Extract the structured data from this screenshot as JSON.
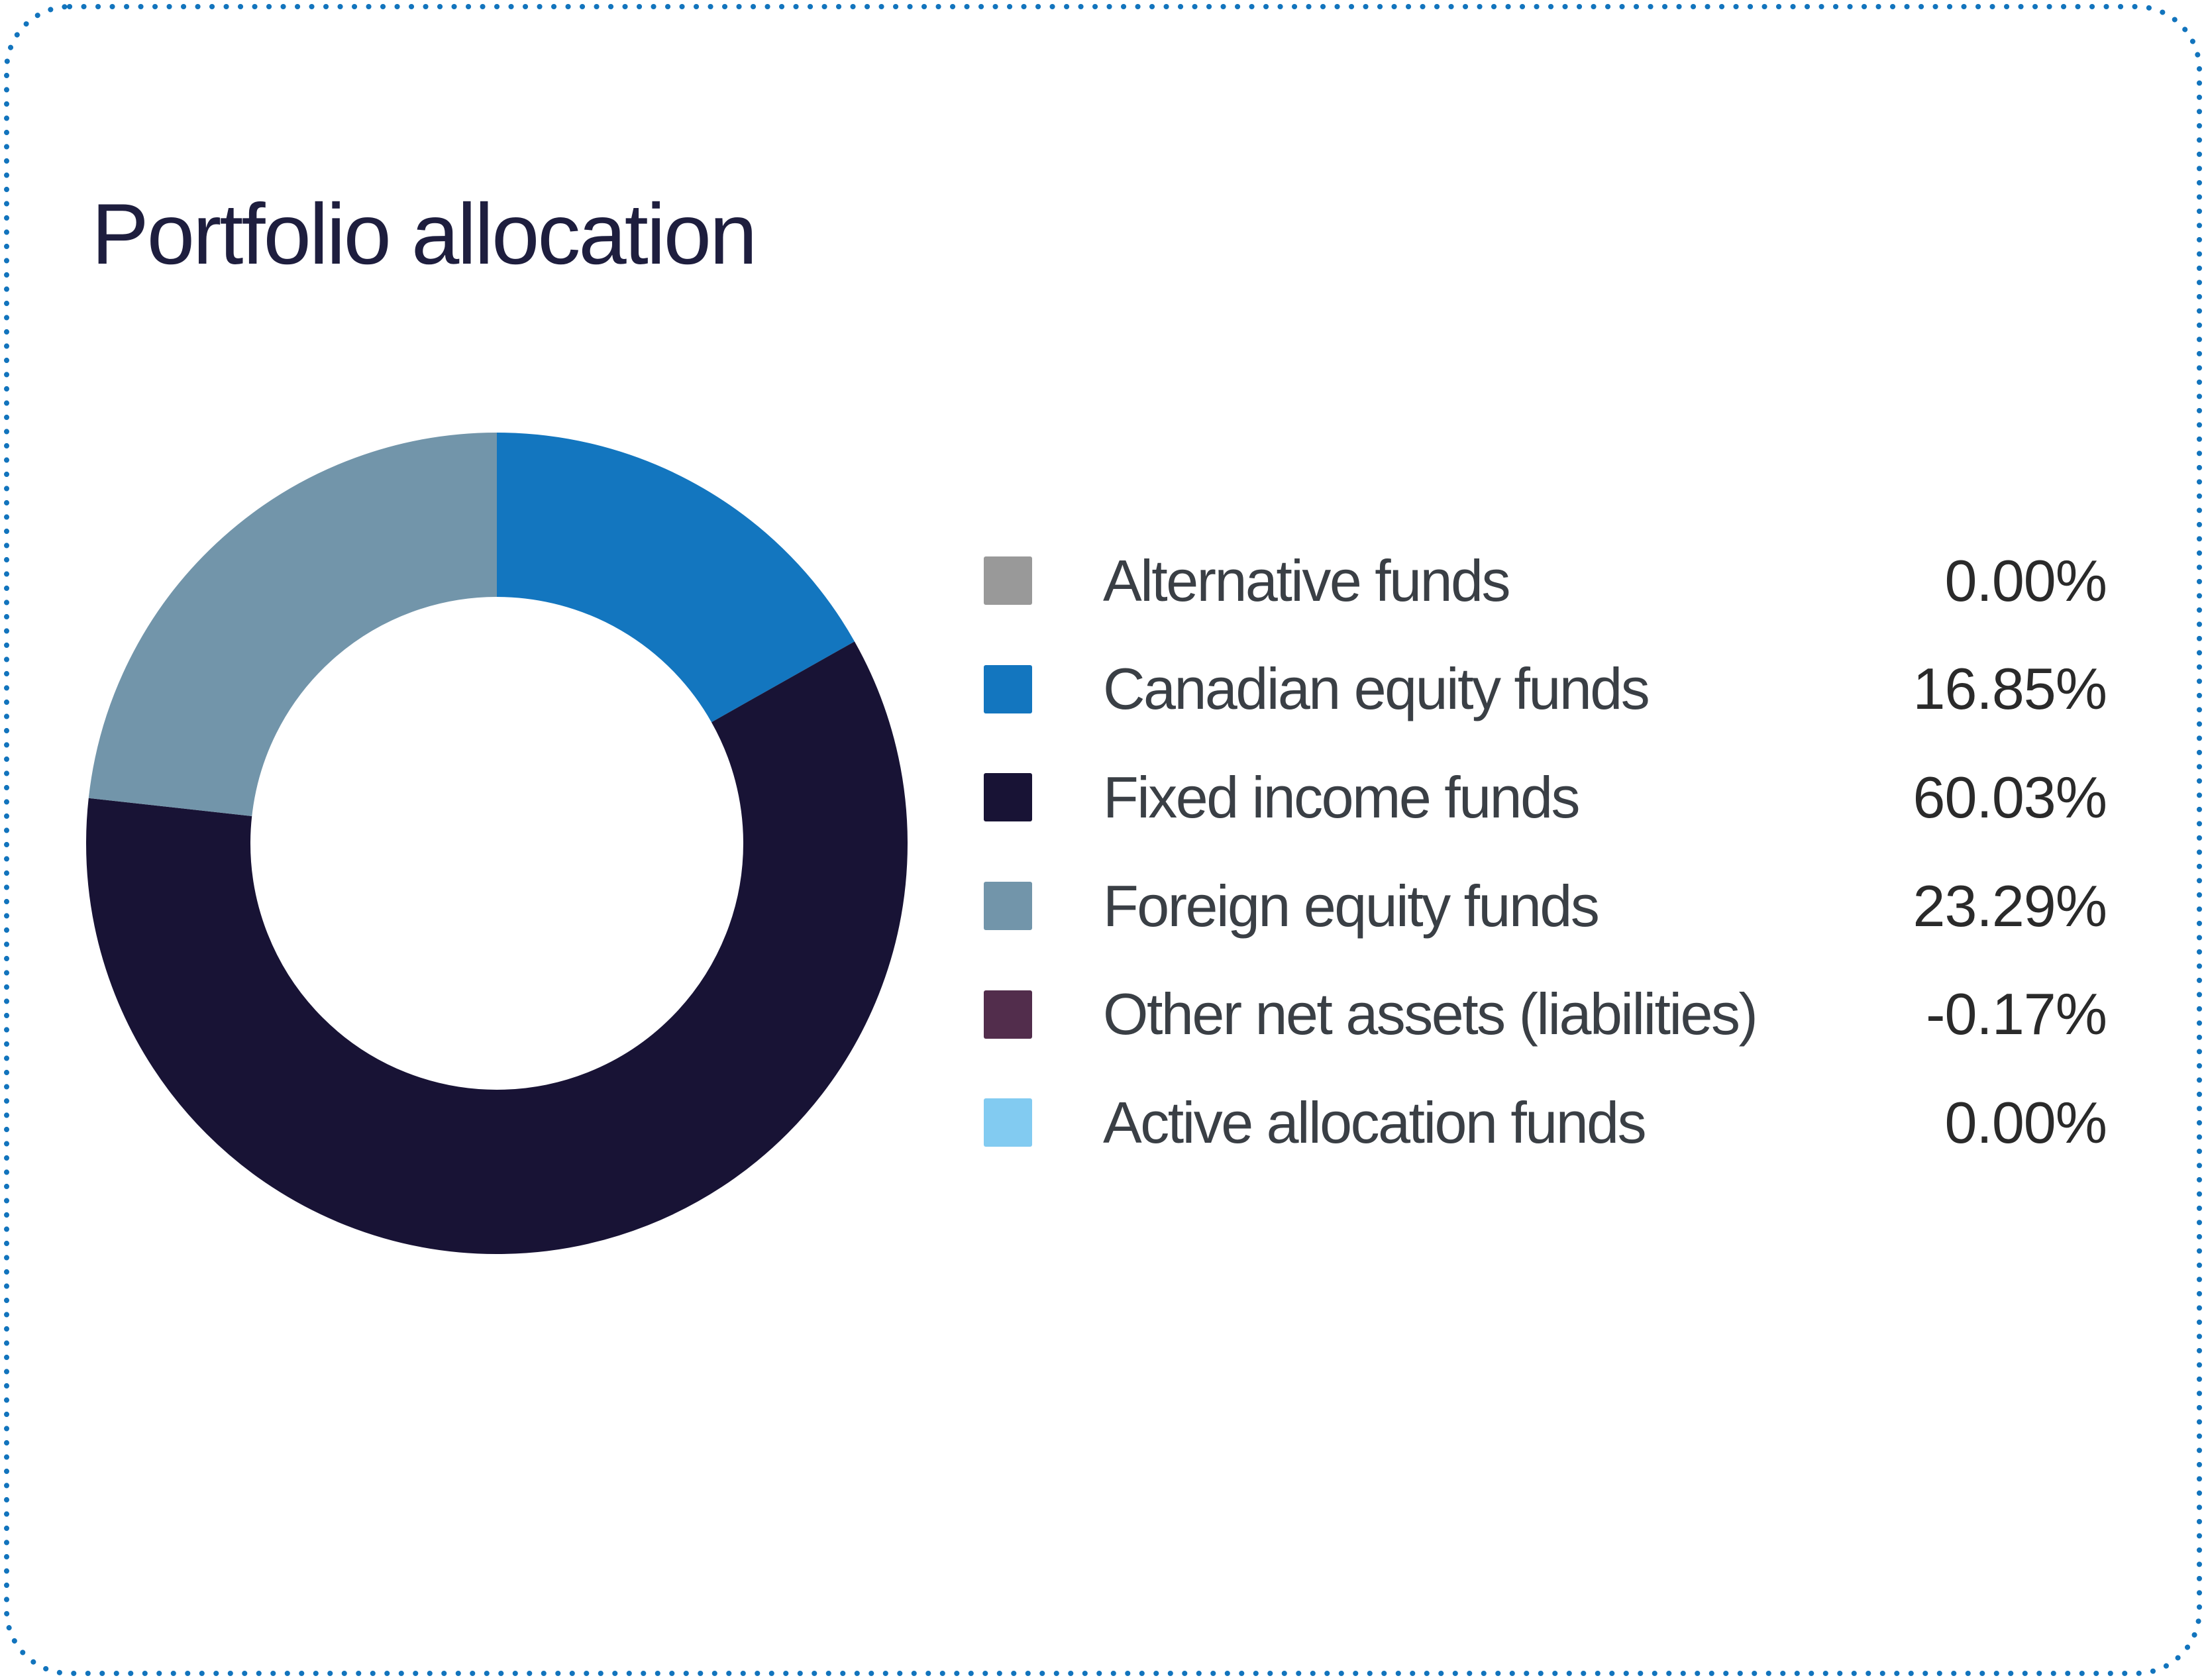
{
  "card": {
    "title": "Portfolio allocation"
  },
  "colors": {
    "card_background": "#FFFFFF",
    "dotted_border": "#1274BD",
    "title_text": "#1E1E3E",
    "legend_label_text": "#3A3F45",
    "legend_value_text": "#2A2A2A"
  },
  "legend": {
    "items": [
      {
        "label": "Alternative funds",
        "value": "0.00%",
        "color": "#999999"
      },
      {
        "label": "Canadian equity funds",
        "value": "16.85%",
        "color": "#1376BF"
      },
      {
        "label": "Fixed income funds",
        "value": "60.03%",
        "color": "#181335"
      },
      {
        "label": "Foreign equity funds",
        "value": "23.29%",
        "color": "#7295AA"
      },
      {
        "label": "Other net assets (liabilities)",
        "value": "-0.17%",
        "color": "#522D4C"
      },
      {
        "label": "Active allocation funds",
        "value": "0.00%",
        "color": "#82CBF1"
      }
    ]
  },
  "chart_data": {
    "type": "pie",
    "subtype": "donut",
    "title": "Portfolio allocation",
    "categories": [
      "Alternative funds",
      "Canadian equity funds",
      "Fixed income funds",
      "Foreign equity funds",
      "Other net assets (liabilities)",
      "Active allocation funds"
    ],
    "values": [
      0.0,
      16.85,
      60.03,
      23.29,
      -0.17,
      0.0
    ],
    "colors": [
      "#999999",
      "#1376BF",
      "#181335",
      "#7295AA",
      "#522D4C",
      "#82CBF1"
    ],
    "value_format": "percent",
    "start_at": "top",
    "direction": "clockwise",
    "inner_radius_ratio": 0.6,
    "legend_position": "right",
    "note_only_positive_slices_drawn": true
  }
}
